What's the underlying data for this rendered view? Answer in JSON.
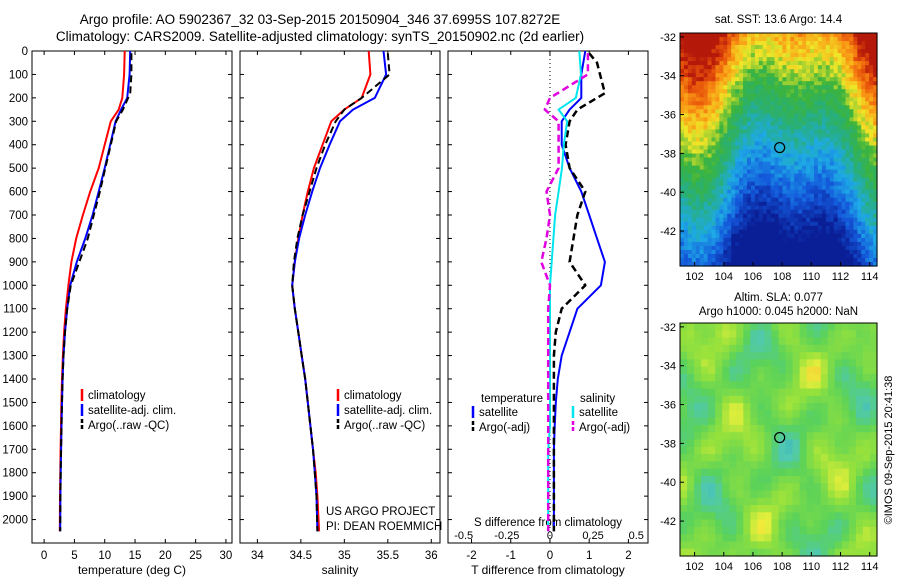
{
  "title_line1": "Argo profile: AO 5902367_32 03-Sep-2015 20150904_346 37.6995S 107.8272E",
  "title_line2": "Climatology: CARS2009. Satellite-adjusted climatology: synTS_20150902.nc (2d earlier)",
  "map_sst_label": "sat. SST: 13.6 Argo: 14.4",
  "map_sla_label": "Altim. SLA: 0.077",
  "map_h_label": "Argo h1000: 0.045 h2000: NaN",
  "credit": "©IMOS 09-Sep-2015 20:41:38",
  "project_line1": "US ARGO PROJECT",
  "project_line2": "PI: DEAN ROEMMICH",
  "colors": {
    "climatology": "#ff0000",
    "satellite": "#0000ff",
    "argo": "#000000",
    "sat_s": "#00e5ee",
    "argo_s": "#e000e0"
  },
  "chart_data": [
    {
      "type": "line",
      "xlabel": "temperature (deg C)",
      "ylim": [
        2100,
        0
      ],
      "xlim": [
        -2,
        31
      ],
      "yticks": [
        0,
        100,
        200,
        300,
        400,
        500,
        600,
        700,
        800,
        900,
        1000,
        1100,
        1200,
        1300,
        1400,
        1500,
        1600,
        1700,
        1800,
        1900,
        2000
      ],
      "xticks": [
        0,
        5,
        10,
        15,
        20,
        25,
        30
      ],
      "legend": [
        "climatology",
        "satellite-adj. clim.",
        "Argo(..raw -QC)"
      ],
      "series": [
        {
          "name": "climatology",
          "x": [
            13.3,
            13.2,
            12.9,
            12.3,
            11.0,
            10.0,
            9.0,
            7.6,
            6.4,
            5.3,
            4.5,
            4.0,
            3.6,
            3.3,
            3.1,
            2.95,
            2.85,
            2.78,
            2.72,
            2.67,
            2.62,
            2.59
          ],
          "y": [
            0,
            100,
            200,
            250,
            300,
            400,
            500,
            600,
            700,
            800,
            900,
            1000,
            1100,
            1200,
            1300,
            1400,
            1500,
            1600,
            1700,
            1800,
            1900,
            2050
          ]
        },
        {
          "name": "satellite-adj. clim.",
          "x": [
            14.2,
            14.1,
            13.7,
            12.7,
            11.8,
            10.9,
            10.0,
            9.0,
            8.0,
            6.8,
            5.4,
            4.3,
            3.8,
            3.45,
            3.2,
            3.05,
            2.95,
            2.87,
            2.8,
            2.74,
            2.69,
            2.66
          ],
          "y": [
            0,
            100,
            200,
            250,
            300,
            400,
            500,
            600,
            700,
            800,
            900,
            1000,
            1100,
            1200,
            1300,
            1400,
            1500,
            1600,
            1700,
            1800,
            1900,
            2050
          ]
        },
        {
          "name": "Argo(..raw -QC)",
          "x": [
            14.4,
            14.4,
            14.2,
            13.0,
            11.9,
            11.0,
            10.1,
            9.2,
            8.2,
            7.2,
            5.8,
            4.4,
            3.8,
            3.45,
            3.2,
            3.05,
            2.95,
            2.87,
            2.8,
            2.74,
            2.69,
            2.66
          ],
          "y": [
            10,
            100,
            180,
            250,
            300,
            400,
            500,
            600,
            700,
            800,
            900,
            1000,
            1100,
            1200,
            1300,
            1400,
            1500,
            1600,
            1700,
            1800,
            1900,
            2050
          ]
        }
      ]
    },
    {
      "type": "line",
      "xlabel": "salinity",
      "ylim": [
        2100,
        0
      ],
      "xlim": [
        33.8,
        36.1
      ],
      "xticks": [
        34,
        34.5,
        35,
        35.5,
        36
      ],
      "legend": [
        "climatology",
        "satellite-adj. clim.",
        "Argo(..raw -QC)"
      ],
      "series": [
        {
          "name": "climatology",
          "x": [
            35.28,
            35.3,
            35.2,
            35.0,
            34.85,
            34.75,
            34.65,
            34.58,
            34.52,
            34.47,
            34.43,
            34.4,
            34.43,
            34.47,
            34.51,
            34.55,
            34.58,
            34.61,
            34.64,
            34.67,
            34.69,
            34.71
          ],
          "y": [
            0,
            100,
            200,
            250,
            300,
            400,
            500,
            600,
            700,
            800,
            900,
            1000,
            1100,
            1200,
            1300,
            1400,
            1500,
            1600,
            1700,
            1800,
            1900,
            2050
          ]
        },
        {
          "name": "satellite-adj. clim.",
          "x": [
            35.45,
            35.48,
            35.35,
            35.1,
            34.95,
            34.83,
            34.72,
            34.63,
            34.55,
            34.48,
            34.43,
            34.4,
            34.43,
            34.47,
            34.51,
            34.55,
            34.58,
            34.61,
            34.64,
            34.66,
            34.68,
            34.69
          ],
          "y": [
            0,
            100,
            200,
            250,
            300,
            400,
            500,
            600,
            700,
            800,
            900,
            1000,
            1100,
            1200,
            1300,
            1400,
            1500,
            1600,
            1700,
            1800,
            1900,
            2050
          ]
        },
        {
          "name": "Argo(..raw -QC)",
          "x": [
            35.5,
            35.52,
            35.2,
            35.0,
            34.9,
            34.78,
            34.68,
            34.6,
            34.52,
            34.46,
            34.42,
            34.4,
            34.43,
            34.47,
            34.51,
            34.55,
            34.58,
            34.61,
            34.64,
            34.66,
            34.68,
            34.69
          ],
          "y": [
            10,
            100,
            200,
            250,
            300,
            400,
            500,
            600,
            700,
            800,
            900,
            1000,
            1100,
            1200,
            1300,
            1400,
            1500,
            1600,
            1700,
            1800,
            1900,
            2050
          ]
        }
      ]
    },
    {
      "type": "line",
      "xlabel": "T difference from climatology",
      "xlabel_top": "S difference from climatology",
      "ylim": [
        2100,
        0
      ],
      "xlim": [
        -2.6,
        2.5
      ],
      "xticks": [
        -2,
        -1,
        0,
        1,
        2
      ],
      "xticks_top": [
        -0.5,
        -0.25,
        0,
        0.25,
        0.5
      ],
      "legend_title_t": "temperature",
      "legend_title_s": "salinity",
      "legend": [
        "satellite",
        "Argo(-adj)",
        "satellite",
        "Argo(-adj)"
      ],
      "series": [
        {
          "name": "satellite",
          "axis": "T",
          "x": [
            0.9,
            0.8,
            0.8,
            0.5,
            0.3,
            0.3,
            0.5,
            0.8,
            1.0,
            1.2,
            1.4,
            1.3,
            0.7,
            0.5,
            0.3,
            0.2,
            0.15,
            0.12,
            0.1,
            0.1,
            0.1,
            0.1
          ],
          "y": [
            0,
            100,
            200,
            250,
            300,
            400,
            500,
            600,
            700,
            800,
            900,
            1000,
            1100,
            1200,
            1300,
            1400,
            1500,
            1600,
            1700,
            1800,
            1900,
            2050
          ]
        },
        {
          "name": "Argo(-adj)",
          "axis": "T",
          "x": [
            1.0,
            1.2,
            1.4,
            0.7,
            0.5,
            0.4,
            0.5,
            0.9,
            0.7,
            0.6,
            0.5,
            0.9,
            0.3,
            0.15,
            0.1,
            0.1,
            0.1,
            0.1,
            0.1,
            0.1,
            0.1,
            0.1
          ],
          "y": [
            10,
            50,
            180,
            250,
            300,
            400,
            500,
            600,
            700,
            800,
            900,
            1000,
            1100,
            1200,
            1300,
            1400,
            1500,
            1600,
            1700,
            1800,
            1900,
            2050
          ]
        },
        {
          "name": "satellite",
          "axis": "S",
          "x": [
            0.17,
            0.18,
            0.15,
            0.05,
            0.1,
            0.08,
            0.07,
            0.05,
            0.03,
            0.02,
            0.01,
            0.0,
            0.0,
            0.0,
            0.0,
            0.0,
            0.0,
            0.0,
            -0.01,
            -0.01,
            -0.01,
            -0.01
          ],
          "y": [
            0,
            100,
            200,
            250,
            300,
            400,
            500,
            600,
            700,
            800,
            900,
            1000,
            1100,
            1200,
            1300,
            1400,
            1500,
            1600,
            1700,
            1800,
            1900,
            2050
          ]
        },
        {
          "name": "Argo(-adj)",
          "axis": "S",
          "x": [
            0.22,
            0.22,
            0.0,
            -0.03,
            0.05,
            0.05,
            0.05,
            -0.02,
            0.0,
            -0.02,
            -0.05,
            0.0,
            -0.01,
            -0.01,
            -0.01,
            -0.01,
            -0.01,
            -0.01,
            -0.01,
            -0.01,
            -0.01,
            -0.01
          ],
          "y": [
            10,
            100,
            200,
            250,
            300,
            400,
            500,
            600,
            700,
            800,
            900,
            1000,
            1100,
            1200,
            1300,
            1400,
            1500,
            1600,
            1700,
            1800,
            1900,
            2050
          ]
        }
      ]
    },
    {
      "type": "heatmap",
      "title": "sat. SST: 13.6 Argo: 14.4",
      "xlim": [
        101,
        114.5
      ],
      "ylim": [
        -43.8,
        -31.8
      ],
      "xticks": [
        102,
        104,
        106,
        108,
        110,
        112,
        114
      ],
      "yticks": [
        -32,
        -34,
        -36,
        -38,
        -40,
        -42
      ],
      "marker": {
        "lon": 107.83,
        "lat": -37.7
      }
    },
    {
      "type": "heatmap",
      "title": "Altim. SLA: 0.077",
      "xlim": [
        101,
        114.5
      ],
      "ylim": [
        -43.8,
        -31.8
      ],
      "xticks": [
        102,
        104,
        106,
        108,
        110,
        112,
        114
      ],
      "yticks": [
        -32,
        -34,
        -36,
        -38,
        -40,
        -42
      ],
      "marker": {
        "lon": 107.83,
        "lat": -37.7
      }
    }
  ]
}
